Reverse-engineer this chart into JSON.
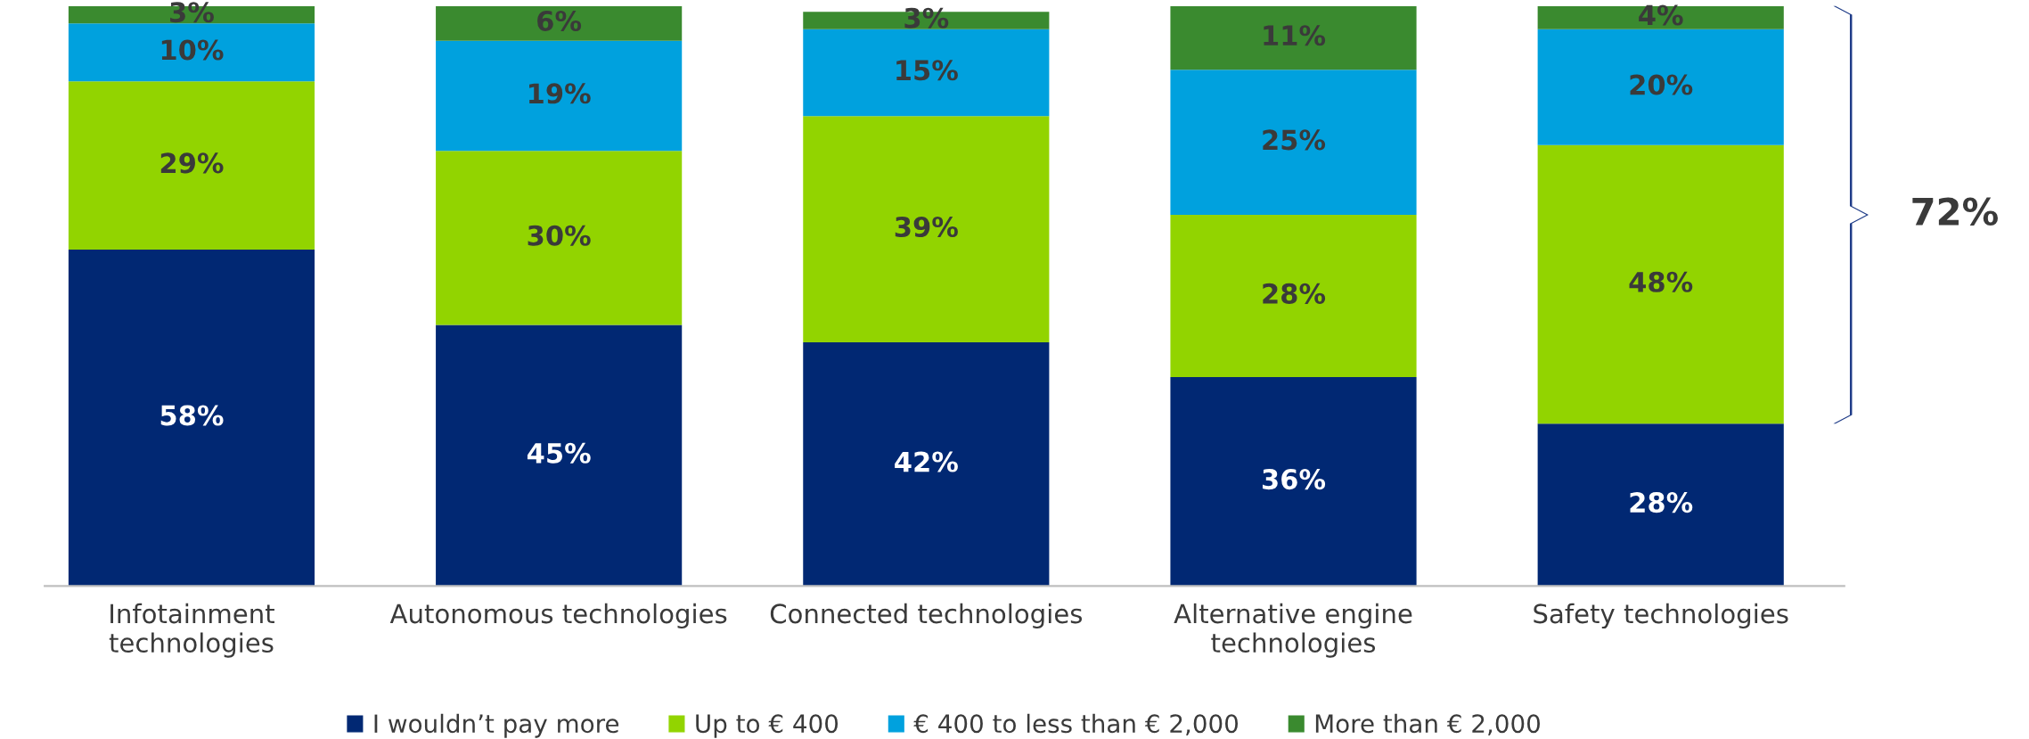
{
  "chart_data": {
    "type": "bar",
    "stacked": true,
    "legend": "bottom",
    "grid": false,
    "categories": [
      "Infotainment\ntechnologies",
      "Autonomous technologies",
      "Connected technologies",
      "Alternative engine\ntechnologies",
      "Safety technologies"
    ],
    "series": [
      {
        "name": "I wouldn’t pay more",
        "color": "#012873",
        "values": [
          58,
          45,
          42,
          36,
          28
        ],
        "value_labels": [
          "58%",
          "45%",
          "42%",
          "36%",
          "28%"
        ]
      },
      {
        "name": "Up to € 400",
        "color": "#92d400",
        "values": [
          29,
          30,
          39,
          28,
          48
        ],
        "value_labels": [
          "29%",
          "30%",
          "39%",
          "28%",
          "48%"
        ]
      },
      {
        "name": "€ 400 to less than € 2,000",
        "color": "#00a1de",
        "values": [
          10,
          19,
          15,
          25,
          20
        ],
        "value_labels": [
          "10%",
          "19%",
          "15%",
          "25%",
          "20%"
        ]
      },
      {
        "name": "More than € 2,000",
        "color": "#3a8a2f",
        "values": [
          3,
          6,
          3,
          11,
          4
        ],
        "value_labels": [
          "3%",
          "6%",
          "3%",
          "11%",
          "4%"
        ]
      }
    ],
    "annotations": [
      "72%"
    ]
  }
}
